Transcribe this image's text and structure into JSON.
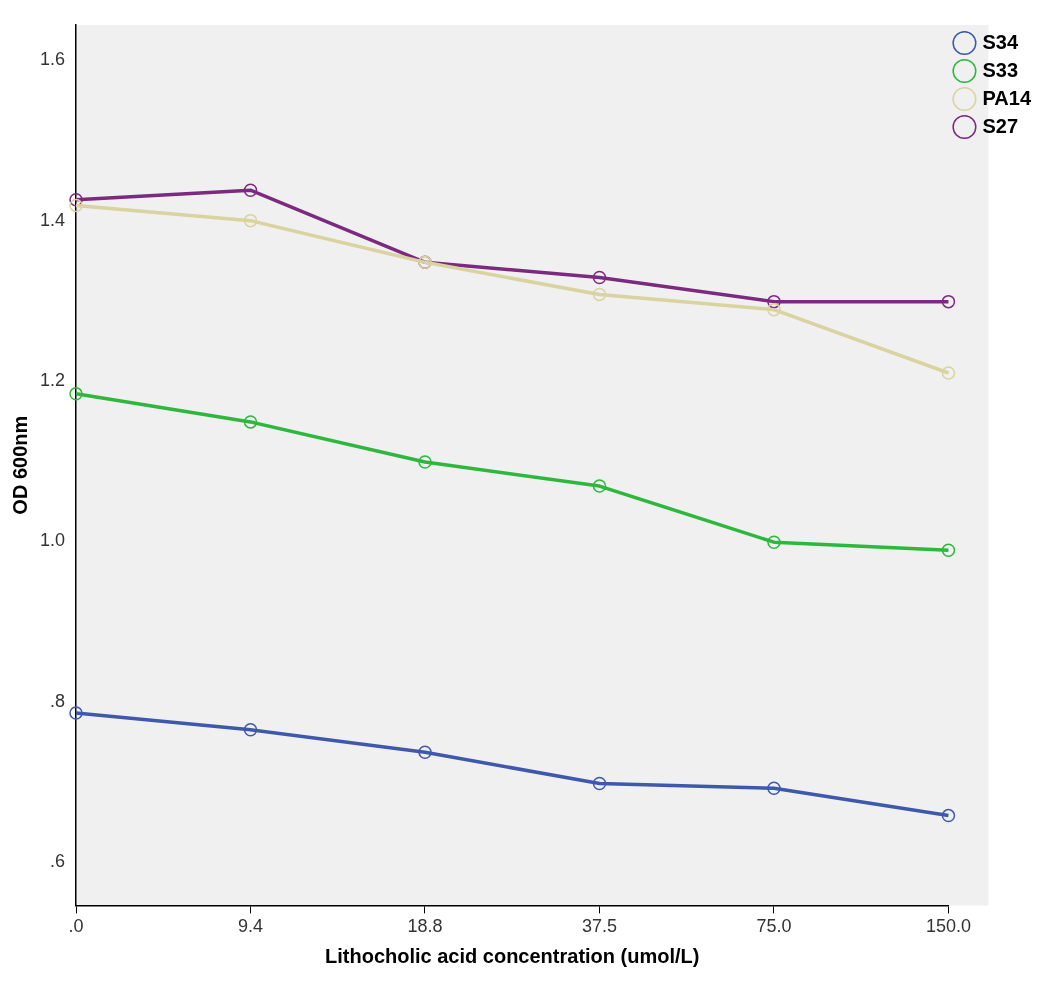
{
  "chart_data": {
    "type": "line",
    "xlabel": "Lithocholic acid concentration (umol/L)",
    "ylabel": "OD 600nm",
    "categories": [
      ".0",
      "9.4",
      "18.8",
      "37.5",
      "75.0",
      "150.0"
    ],
    "series": [
      {
        "name": "S34",
        "color": "#3e58ac",
        "values": [
          0.786,
          0.765,
          0.737,
          0.698,
          0.692,
          0.658
        ]
      },
      {
        "name": "S33",
        "color": "#2db83d",
        "values": [
          1.184,
          1.149,
          1.099,
          1.069,
          0.999,
          0.989
        ]
      },
      {
        "name": "PA14",
        "color": "#d9d3a0",
        "values": [
          1.419,
          1.4,
          1.348,
          1.308,
          1.289,
          1.21
        ]
      },
      {
        "name": "S27",
        "color": "#7b2a7f",
        "values": [
          1.426,
          1.438,
          1.348,
          1.329,
          1.299,
          1.299
        ]
      }
    ],
    "ylim": [
      0.546,
      1.644
    ],
    "yticks": [
      {
        "value": 0.6,
        "label": ".6"
      },
      {
        "value": 0.8,
        "label": ".8"
      },
      {
        "value": 1.0,
        "label": "1.0"
      },
      1.2,
      1.4,
      1.6
    ],
    "marker": "circle",
    "line_style": "solid",
    "legend": "top right"
  }
}
